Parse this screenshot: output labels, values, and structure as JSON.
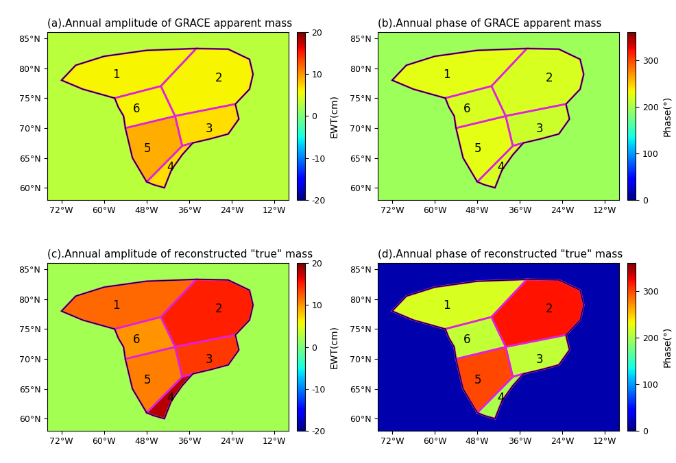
{
  "chart_data": [
    {
      "type": "heatmap",
      "title": "(a).Annual amplitude of GRACE apparent mass",
      "colorbar_label": "EWT(cm)",
      "colorbar_range": [
        -20,
        20
      ],
      "colorbar_ticks": [
        -20,
        -10,
        0,
        10,
        20
      ],
      "xlim": [
        -76,
        -8
      ],
      "ylim": [
        58,
        86
      ],
      "xticks": [
        {
          "value": -72,
          "label": "72°W"
        },
        {
          "value": -60,
          "label": "60°W"
        },
        {
          "value": -48,
          "label": "48°W"
        },
        {
          "value": -36,
          "label": "36°W"
        },
        {
          "value": -24,
          "label": "24°W"
        },
        {
          "value": -12,
          "label": "12°W"
        }
      ],
      "yticks": [
        {
          "value": 60,
          "label": "60°N"
        },
        {
          "value": 65,
          "label": "65°N"
        },
        {
          "value": 70,
          "label": "70°N"
        },
        {
          "value": 75,
          "label": "75°N"
        },
        {
          "value": 80,
          "label": "80°N"
        },
        {
          "value": 85,
          "label": "85°N"
        }
      ],
      "basins": [
        "1",
        "2",
        "3",
        "4",
        "5",
        "6"
      ],
      "basin_values": [
        6,
        6,
        7,
        7,
        9,
        6
      ],
      "background_value": 3
    },
    {
      "type": "heatmap",
      "title": "(b).Annual phase of GRACE apparent mass",
      "colorbar_label": "Phase(°)",
      "colorbar_range": [
        0,
        360
      ],
      "colorbar_ticks": [
        0,
        100,
        200,
        300
      ],
      "xlim": [
        -76,
        -8
      ],
      "ylim": [
        58,
        86
      ],
      "xticks": [
        {
          "value": -72,
          "label": "72°W"
        },
        {
          "value": -60,
          "label": "60°W"
        },
        {
          "value": -48,
          "label": "48°W"
        },
        {
          "value": -36,
          "label": "36°W"
        },
        {
          "value": -24,
          "label": "24°W"
        },
        {
          "value": -12,
          "label": "12°W"
        }
      ],
      "yticks": [
        {
          "value": 60,
          "label": "60°N"
        },
        {
          "value": 65,
          "label": "65°N"
        },
        {
          "value": 70,
          "label": "70°N"
        },
        {
          "value": 75,
          "label": "75°N"
        },
        {
          "value": 80,
          "label": "80°N"
        },
        {
          "value": 85,
          "label": "85°N"
        }
      ],
      "basins": [
        "1",
        "2",
        "3",
        "4",
        "5",
        "6"
      ],
      "basin_values": [
        225,
        220,
        215,
        220,
        225,
        220
      ],
      "background_value": 195
    },
    {
      "type": "heatmap",
      "title": "(c).Annual amplitude of reconstructed \"true\" mass",
      "colorbar_label": "EWT(cm)",
      "colorbar_range": [
        -20,
        20
      ],
      "colorbar_ticks": [
        -20,
        -10,
        0,
        10,
        20
      ],
      "xlim": [
        -76,
        -8
      ],
      "ylim": [
        58,
        86
      ],
      "xticks": [
        {
          "value": -72,
          "label": "72°W"
        },
        {
          "value": -60,
          "label": "60°W"
        },
        {
          "value": -48,
          "label": "48°W"
        },
        {
          "value": -36,
          "label": "36°W"
        },
        {
          "value": -24,
          "label": "24°W"
        },
        {
          "value": -12,
          "label": "12°W"
        }
      ],
      "yticks": [
        {
          "value": 60,
          "label": "60°N"
        },
        {
          "value": 65,
          "label": "65°N"
        },
        {
          "value": 70,
          "label": "70°N"
        },
        {
          "value": 75,
          "label": "75°N"
        },
        {
          "value": 80,
          "label": "80°N"
        },
        {
          "value": 85,
          "label": "85°N"
        }
      ],
      "basins": [
        "1",
        "2",
        "3",
        "4",
        "5",
        "6"
      ],
      "basin_values": [
        12,
        15,
        14,
        18,
        11,
        10
      ],
      "background_value": 2
    },
    {
      "type": "heatmap",
      "title": "(d).Annual phase of reconstructed \"true\" mass",
      "colorbar_label": "Phase(°)",
      "colorbar_range": [
        0,
        360
      ],
      "colorbar_ticks": [
        0,
        100,
        200,
        300
      ],
      "xlim": [
        -76,
        -8
      ],
      "ylim": [
        58,
        86
      ],
      "xticks": [
        {
          "value": -72,
          "label": "72°W"
        },
        {
          "value": -60,
          "label": "60°W"
        },
        {
          "value": -48,
          "label": "48°W"
        },
        {
          "value": -36,
          "label": "36°W"
        },
        {
          "value": -24,
          "label": "24°W"
        },
        {
          "value": -12,
          "label": "12°W"
        }
      ],
      "yticks": [
        {
          "value": 60,
          "label": "60°N"
        },
        {
          "value": 65,
          "label": "65°N"
        },
        {
          "value": 70,
          "label": "70°N"
        },
        {
          "value": 75,
          "label": "75°N"
        },
        {
          "value": 80,
          "label": "80°N"
        },
        {
          "value": 85,
          "label": "85°N"
        }
      ],
      "basins": [
        "1",
        "2",
        "3",
        "4",
        "5",
        "6"
      ],
      "basin_values": [
        220,
        320,
        210,
        200,
        300,
        210
      ],
      "background_value": 15
    }
  ]
}
